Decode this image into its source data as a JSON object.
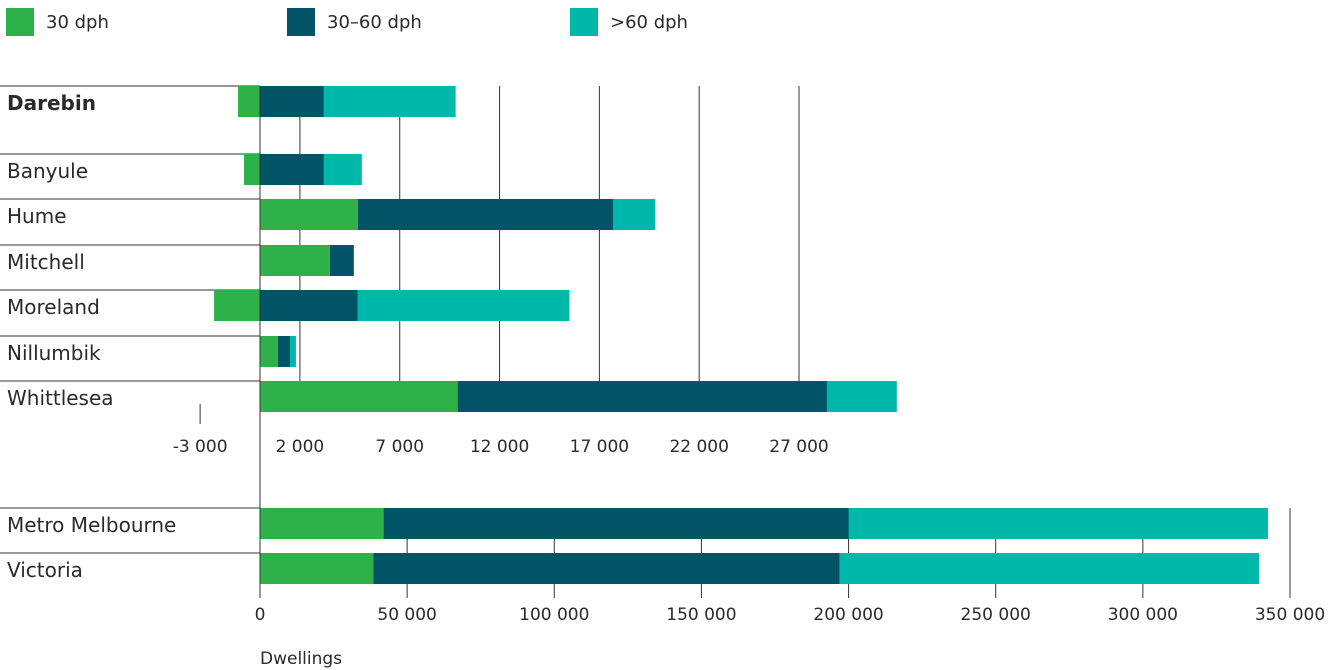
{
  "legend": [
    {
      "label": "30 dph",
      "color": "#2fb14a"
    },
    {
      "label": "30–60 dph",
      "color": "#005466"
    },
    {
      "label": ">60 dph",
      "color": "#00b8aa"
    }
  ],
  "chart_data": [
    {
      "type": "bar",
      "orientation": "horizontal",
      "stacked": true,
      "categories": [
        "Darebin",
        "Banyule",
        "Hume",
        "Mitchell",
        "Moreland",
        "Nillumbik",
        "Whittlesea"
      ],
      "highlight": "Darebin",
      "series": [
        {
          "name": "30 dph",
          "values": [
            -1100,
            -800,
            4900,
            3500,
            -2300,
            900,
            9900
          ]
        },
        {
          "name": "30–60 dph",
          "values": [
            3200,
            3200,
            12800,
            1200,
            4900,
            600,
            18500
          ]
        },
        {
          "name": ">60 dph",
          "values": [
            6600,
            1900,
            2100,
            0,
            10600,
            300,
            3500
          ]
        }
      ],
      "xlim": [
        -3000,
        32000
      ],
      "xticks": [
        "-3 000",
        "2 000",
        "7 000",
        "12 000",
        "17 000",
        "22 000",
        "27 000"
      ],
      "grid": true
    },
    {
      "type": "bar",
      "orientation": "horizontal",
      "stacked": true,
      "categories": [
        "Metro Melbourne",
        "Victoria"
      ],
      "series": [
        {
          "name": "30 dph",
          "values": [
            42000,
            38500
          ]
        },
        {
          "name": "30–60 dph",
          "values": [
            158000,
            158500
          ]
        },
        {
          "name": ">60 dph",
          "values": [
            142500,
            142500
          ]
        }
      ],
      "xlim": [
        0,
        350000
      ],
      "xticks": [
        "0",
        "50 000",
        "100 000",
        "150 000",
        "200 000",
        "250 000",
        "300 000",
        "350 000"
      ],
      "xlabel": "Dwellings",
      "grid": true
    }
  ]
}
